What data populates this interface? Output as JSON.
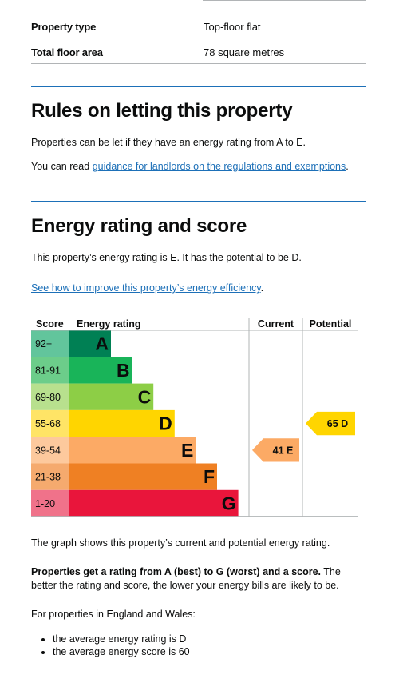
{
  "summary": [
    {
      "label": "Property type",
      "value": "Top-floor flat"
    },
    {
      "label": "Total floor area",
      "value": "78 square metres"
    }
  ],
  "rules": {
    "heading": "Rules on letting this property",
    "text": "Properties can be let if they have an energy rating from A to E.",
    "guidance_prefix": "You can read ",
    "guidance_link": "guidance for landlords on the regulations and exemptions",
    "guidance_suffix": "."
  },
  "energy": {
    "heading": "Energy rating and score",
    "text": "This property’s energy rating is E. It has the potential to be D.",
    "improve_link": "See how to improve this property’s energy efficiency",
    "improve_suffix": ".",
    "graph_caption": "The graph shows this property’s current and potential energy rating.",
    "bold_text": "Properties get a rating from A (best) to G (worst) and a score.",
    "rest_text": " The better the rating and score, the lower your energy bills are likely to be.",
    "region_text": "For properties in England and Wales:",
    "bullets": [
      "the average energy rating is D",
      "the average energy score is 60"
    ]
  },
  "chart_data": {
    "type": "table",
    "headers": {
      "score": "Score",
      "rating": "Energy rating",
      "current": "Current",
      "potential": "Potential"
    },
    "bands": [
      {
        "score": "92+",
        "letter": "A",
        "bar_color": "#008054",
        "score_color": "#62c59c"
      },
      {
        "score": "81-91",
        "letter": "B",
        "bar_color": "#19b459",
        "score_color": "#6ccd8a"
      },
      {
        "score": "69-80",
        "letter": "C",
        "bar_color": "#8dce46",
        "score_color": "#b8e08e"
      },
      {
        "score": "55-68",
        "letter": "D",
        "bar_color": "#ffd500",
        "score_color": "#ffe466"
      },
      {
        "score": "39-54",
        "letter": "E",
        "bar_color": "#fcaa65",
        "score_color": "#fdc99d"
      },
      {
        "score": "21-38",
        "letter": "F",
        "bar_color": "#ef8023",
        "score_color": "#f5aa6e"
      },
      {
        "score": "1-20",
        "letter": "G",
        "bar_color": "#e9153b",
        "score_color": "#f0728a"
      }
    ],
    "current": {
      "score": 41,
      "letter": "E",
      "label": "41 E",
      "color": "#fcaa65"
    },
    "potential": {
      "score": 65,
      "letter": "D",
      "label": "65 D",
      "color": "#ffd500"
    }
  }
}
